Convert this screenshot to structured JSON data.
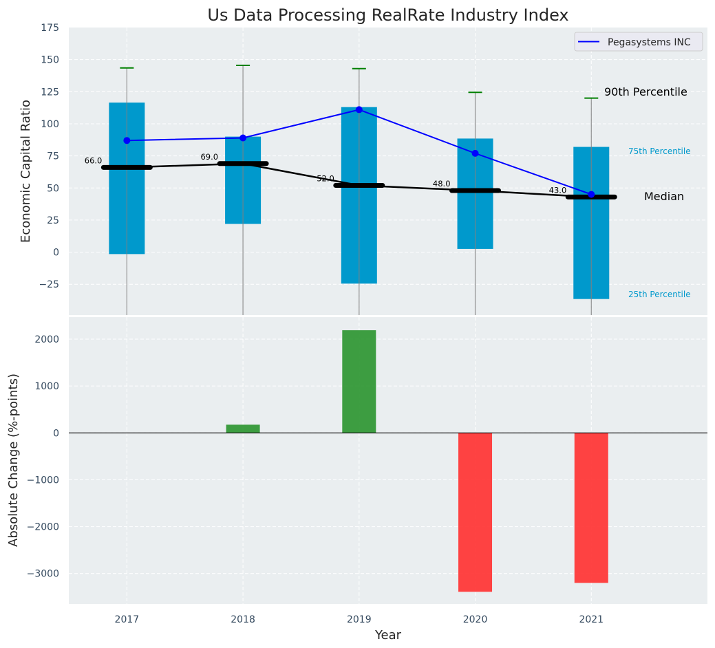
{
  "chart_data": [
    {
      "type": "bar",
      "subtype": "percentile-range-with-line",
      "title": "Us Data Processing RealRate Industry Index",
      "xlabel": "",
      "ylabel": "Economic Capital Ratio",
      "categories": [
        "2017",
        "2018",
        "2019",
        "2020",
        "2021"
      ],
      "x": [
        2017,
        2018,
        2019,
        2020,
        2021
      ],
      "xlim": [
        2016.5,
        2022.0
      ],
      "ylim": [
        -49,
        175
      ],
      "yticks": [
        -25,
        0,
        25,
        50,
        75,
        100,
        125,
        150,
        175
      ],
      "ytick_labels": [
        "−25",
        "0",
        "25",
        "50",
        "75",
        "100",
        "125",
        "150",
        "175"
      ],
      "grid": true,
      "percentile_25": [
        -1.5,
        22,
        -24.5,
        2.5,
        -36.5
      ],
      "percentile_75": [
        116.5,
        90,
        113,
        88.5,
        82
      ],
      "percentile_90": [
        143.5,
        145.5,
        143,
        124.5,
        120
      ],
      "median": [
        66.0,
        69.0,
        52.0,
        48.0,
        43.0
      ],
      "median_labels": [
        "66.0",
        "69.0",
        "52.0",
        "48.0",
        "43.0"
      ],
      "series": [
        {
          "name": "Pegasystems INC",
          "values": [
            87,
            89,
            111,
            77,
            45
          ],
          "color": "#0000ff"
        }
      ],
      "legend": {
        "entries": [
          "Pegasystems INC"
        ],
        "placement": "top-right"
      },
      "annotations": {
        "p90": "90th Percentile",
        "p75": "75th Percentile",
        "median": "Median",
        "p25": "25th Percentile"
      },
      "colors": {
        "box": "#0099cc",
        "median": "#000000",
        "whisker_cap": "#008000",
        "whisker": "#808080",
        "company": "#0000ff",
        "background": "#eaeef0"
      }
    },
    {
      "type": "bar",
      "title": "",
      "xlabel": "Year",
      "ylabel": "Absolute Change (%-points)",
      "categories": [
        "2017",
        "2018",
        "2019",
        "2020",
        "2021"
      ],
      "x": [
        2017,
        2018,
        2019,
        2020,
        2021
      ],
      "values": [
        0,
        175,
        2190,
        -3390,
        -3200
      ],
      "xlim": [
        2016.5,
        2022.0
      ],
      "ylim": [
        -3650,
        2470
      ],
      "yticks": [
        -3000,
        -2000,
        -1000,
        0,
        1000,
        2000
      ],
      "ytick_labels": [
        "−3000",
        "−2000",
        "−1000",
        "0",
        "1000",
        "2000"
      ],
      "grid": true,
      "colors": {
        "positive": "#2e9632",
        "negative": "#ff3333",
        "zero_line": "#000000"
      }
    }
  ]
}
